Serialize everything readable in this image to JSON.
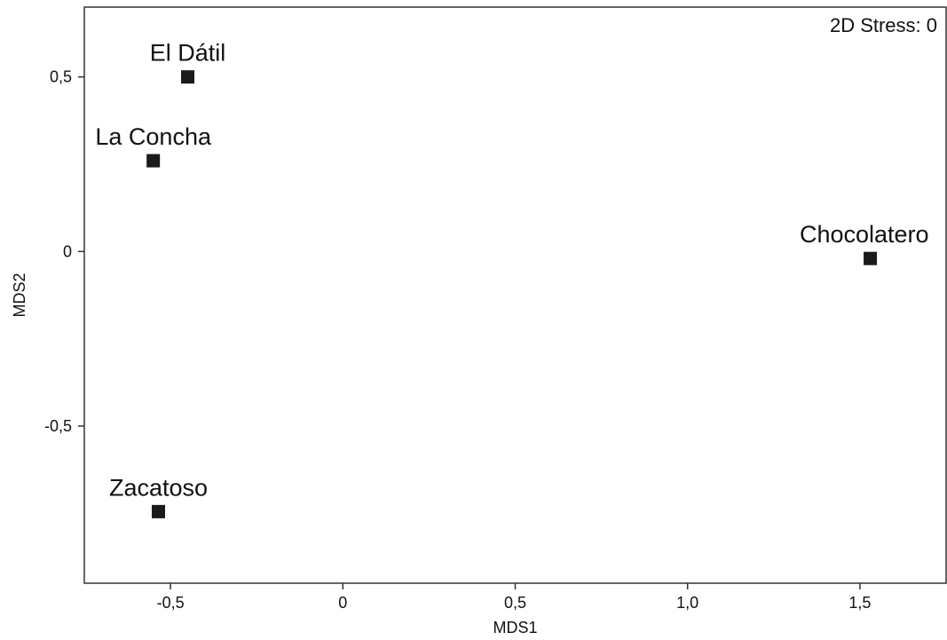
{
  "chart_data": {
    "type": "scatter",
    "xlabel": "MDS1",
    "ylabel": "MDS2",
    "annotation": "2D Stress: 0",
    "xlim": [
      -0.75,
      1.75
    ],
    "ylim": [
      -0.95,
      0.7
    ],
    "xticks": [
      {
        "value": -0.5,
        "label": "-0,5"
      },
      {
        "value": 0,
        "label": "0"
      },
      {
        "value": 0.5,
        "label": "0,5"
      },
      {
        "value": 1.0,
        "label": "1,0"
      },
      {
        "value": 1.5,
        "label": "1,5"
      }
    ],
    "yticks": [
      {
        "value": 0.5,
        "label": "0,5"
      },
      {
        "value": 0,
        "label": "0"
      },
      {
        "value": -0.5,
        "label": "-0,5"
      }
    ],
    "points": [
      {
        "label": "El Dátil",
        "x": -0.45,
        "y": 0.5
      },
      {
        "label": "La Concha",
        "x": -0.55,
        "y": 0.26
      },
      {
        "label": "Chocolatero",
        "x": 1.53,
        "y": -0.02
      },
      {
        "label": "Zacatoso",
        "x": -0.535,
        "y": -0.745
      }
    ],
    "marker": "square",
    "marker_color": "#1a1a1a",
    "grid": false,
    "legend": "none"
  }
}
